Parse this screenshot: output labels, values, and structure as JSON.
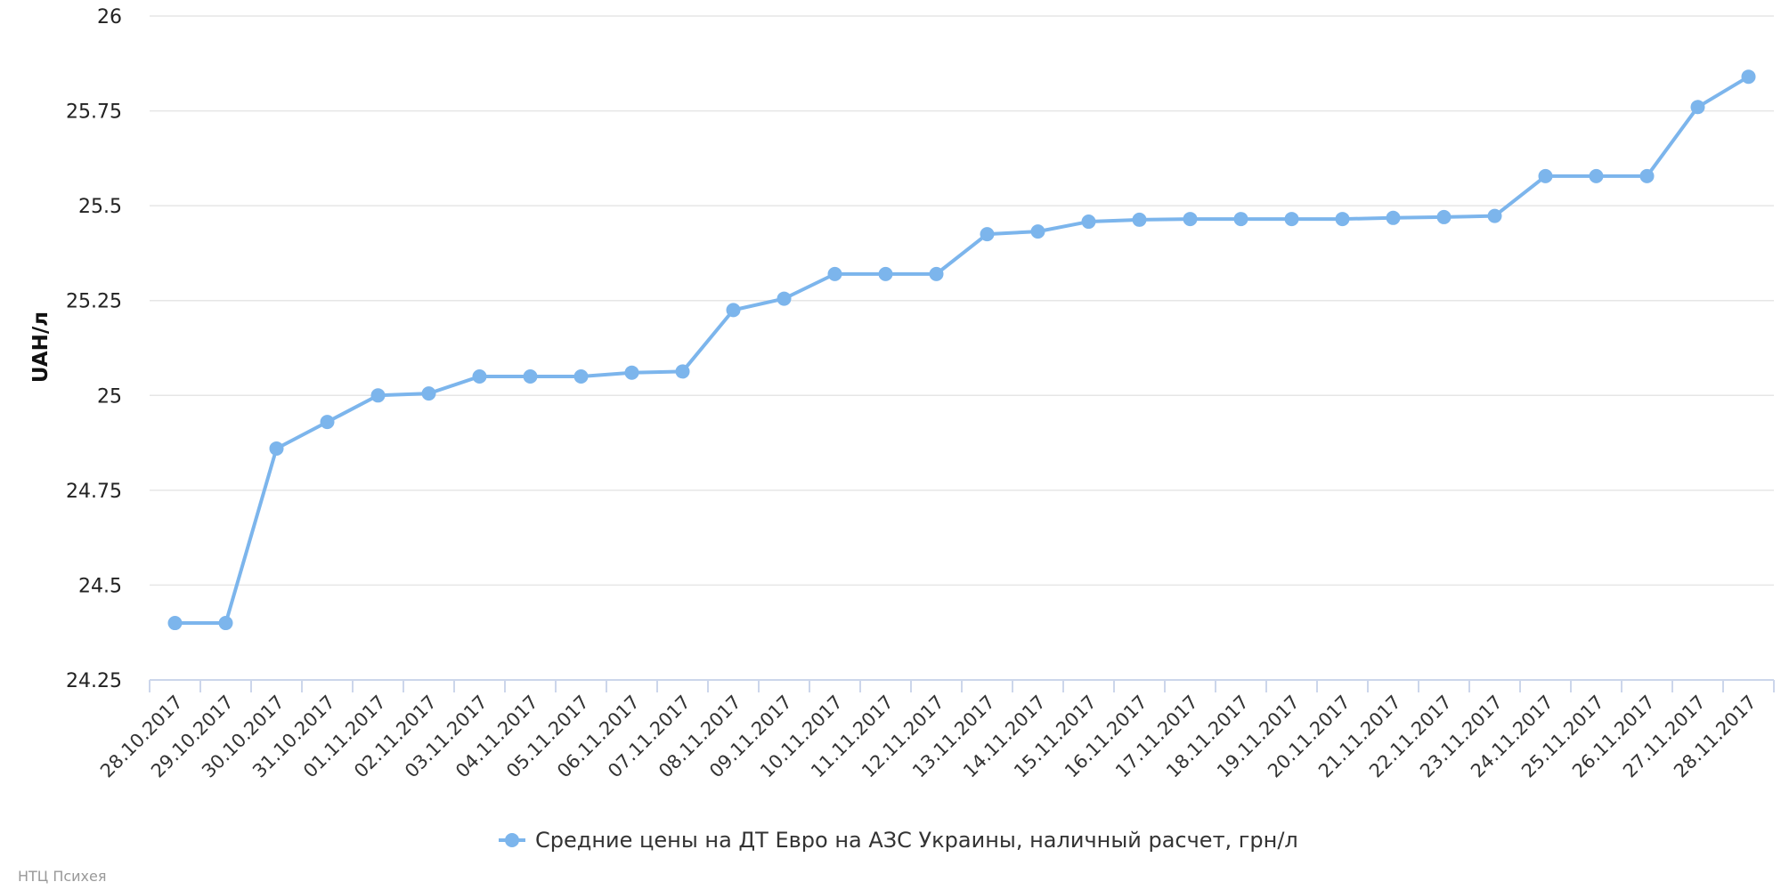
{
  "chart_data": {
    "type": "line",
    "title": "",
    "xlabel": "",
    "ylabel": "UAH/л",
    "ylim": [
      24.25,
      26
    ],
    "yticks": [
      "24.25",
      "24.5",
      "24.75",
      "25",
      "25.25",
      "25.5",
      "25.75",
      "26"
    ],
    "grid": true,
    "legend_position": "bottom-center",
    "categories": [
      "28.10.2017",
      "29.10.2017",
      "30.10.2017",
      "31.10.2017",
      "01.11.2017",
      "02.11.2017",
      "03.11.2017",
      "04.11.2017",
      "05.11.2017",
      "06.11.2017",
      "07.11.2017",
      "08.11.2017",
      "09.11.2017",
      "10.11.2017",
      "11.11.2017",
      "12.11.2017",
      "13.11.2017",
      "14.11.2017",
      "15.11.2017",
      "16.11.2017",
      "17.11.2017",
      "18.11.2017",
      "19.11.2017",
      "20.11.2017",
      "21.11.2017",
      "22.11.2017",
      "23.11.2017",
      "24.11.2017",
      "25.11.2017",
      "26.11.2017",
      "27.11.2017",
      "28.11.2017"
    ],
    "series": [
      {
        "name": "Средние цены на ДТ Евро на АЗС Украины, наличный расчет, грн/л",
        "color": "#7cb5ec",
        "values": [
          24.4,
          24.4,
          24.86,
          24.93,
          25.0,
          25.005,
          25.05,
          25.05,
          25.05,
          25.06,
          25.063,
          25.225,
          25.255,
          25.32,
          25.32,
          25.32,
          25.425,
          25.432,
          25.458,
          25.463,
          25.465,
          25.465,
          25.465,
          25.465,
          25.468,
          25.47,
          25.473,
          25.578,
          25.578,
          25.578,
          25.76,
          25.84
        ]
      }
    ]
  },
  "credit": "НТЦ Психея"
}
